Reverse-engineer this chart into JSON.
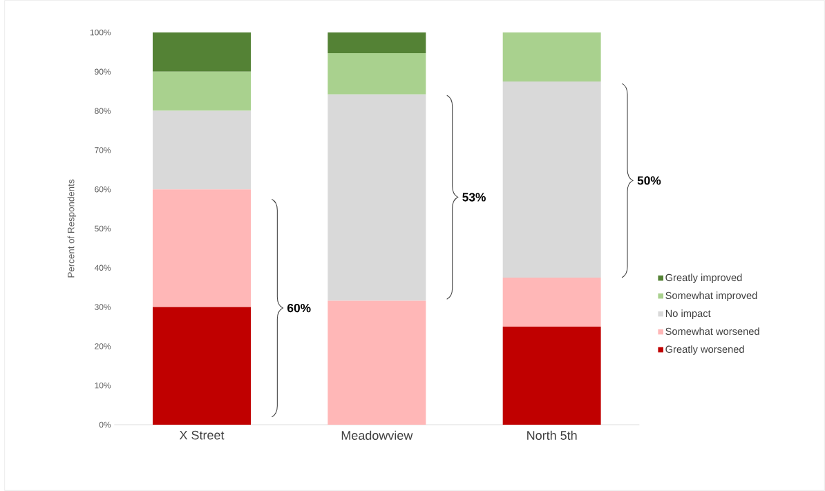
{
  "chart_data": {
    "type": "bar",
    "stacked": true,
    "ylabel": "Percent of Respondents",
    "categories": [
      "X Street",
      "Meadowview",
      "North 5th"
    ],
    "series": [
      {
        "name": "Greatly worsened",
        "color": "#c00000",
        "values": [
          30,
          0,
          25
        ]
      },
      {
        "name": "Somewhat worsened",
        "color": "#ffb7b7",
        "values": [
          30,
          31.6,
          12.5
        ]
      },
      {
        "name": "No impact",
        "color": "#d9d9d9",
        "values": [
          20,
          52.6,
          50
        ]
      },
      {
        "name": "Somewhat improved",
        "color": "#a9d18e",
        "values": [
          10,
          10.5,
          12.5
        ]
      },
      {
        "name": "Greatly improved",
        "color": "#548235",
        "values": [
          10,
          5.3,
          0
        ]
      }
    ],
    "ylim": [
      0,
      100
    ],
    "yticks": [
      {
        "value": 0,
        "label": "0%"
      },
      {
        "value": 10,
        "label": "10%"
      },
      {
        "value": 20,
        "label": "20%"
      },
      {
        "value": 30,
        "label": "30%"
      },
      {
        "value": 40,
        "label": "40%"
      },
      {
        "value": 50,
        "label": "50%"
      },
      {
        "value": 60,
        "label": "60%"
      },
      {
        "value": 70,
        "label": "70%"
      },
      {
        "value": 80,
        "label": "80%"
      },
      {
        "value": 90,
        "label": "90%"
      },
      {
        "value": 100,
        "label": "100%"
      }
    ],
    "grid": false,
    "legend": "right",
    "annotations": [
      "60%",
      "53%",
      "50%"
    ]
  }
}
